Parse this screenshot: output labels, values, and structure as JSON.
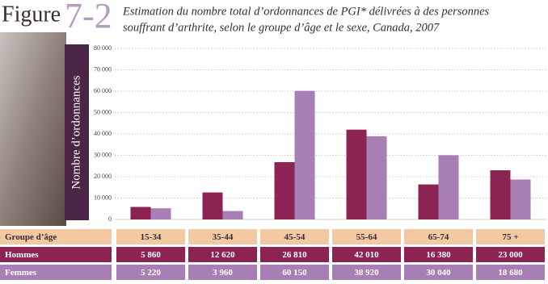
{
  "figure_label": "Figure",
  "figure_number": "7-2",
  "chart_data": {
    "type": "bar",
    "title": "Estimation du nombre total d’ordonnances de PGI* délivrées à des personnes",
    "subtitle": "souffrant d’arthrite, selon le groupe d’âge et le sexe, Canada, 2007",
    "ylabel": "Nombre d’ordonnances",
    "xlabel": "Groupe d’âge",
    "categories": [
      "15-34",
      "35-44",
      "45-54",
      "55-64",
      "65-74",
      "75 +"
    ],
    "series": [
      {
        "name": "Hommes",
        "color": "#8b2452",
        "values": [
          5860,
          12620,
          26810,
          42010,
          16380,
          23000
        ],
        "value_labels": [
          "5 860",
          "12 620",
          "26 810",
          "42 010",
          "16 380",
          "23 000"
        ]
      },
      {
        "name": "Femmes",
        "color": "#a77fb4",
        "values": [
          5220,
          3960,
          60150,
          38920,
          30040,
          18680
        ],
        "value_labels": [
          "5 220",
          "3 960",
          "60 150",
          "38 920",
          "30 040",
          "18 680"
        ]
      }
    ],
    "ylim": [
      0,
      80000
    ],
    "yticks": [
      0,
      {
        "value": 10000,
        "label": "10 000"
      },
      {
        "value": 20000,
        "label": "20 000"
      },
      {
        "value": 30000,
        "label": "30 000"
      },
      {
        "value": 40000,
        "label": "40 000"
      },
      {
        "value": 50000,
        "label": "50 000"
      },
      {
        "value": 60000,
        "label": "60 000"
      },
      {
        "value": 70000,
        "label": "70 000"
      },
      {
        "value": 80000,
        "label": "80 000"
      }
    ],
    "grid": true
  }
}
